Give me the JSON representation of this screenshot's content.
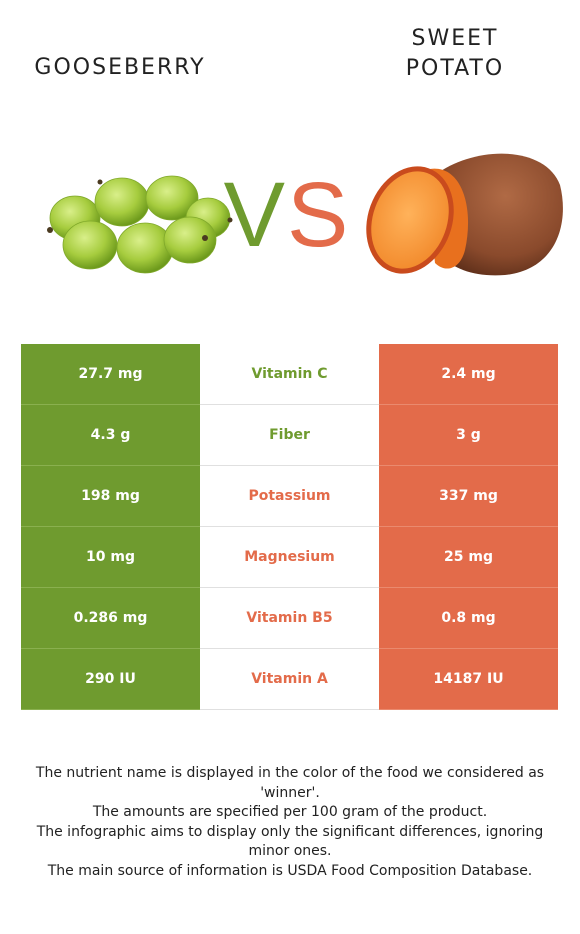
{
  "left_food": {
    "name": "GOOSEBERRY",
    "color": "#6f9b2f"
  },
  "right_food": {
    "name": "SWEET\nPOTATO",
    "color": "#e36b4a"
  },
  "vs": {
    "v": "V",
    "s": "S"
  },
  "rows": [
    {
      "nutrient": "Vitamin C",
      "left": "27.7 mg",
      "right": "2.4 mg",
      "winner": "left"
    },
    {
      "nutrient": "Fiber",
      "left": "4.3 g",
      "right": "3 g",
      "winner": "left"
    },
    {
      "nutrient": "Potassium",
      "left": "198 mg",
      "right": "337 mg",
      "winner": "right"
    },
    {
      "nutrient": "Magnesium",
      "left": "10 mg",
      "right": "25 mg",
      "winner": "right"
    },
    {
      "nutrient": "Vitamin B5",
      "left": "0.286 mg",
      "right": "0.8 mg",
      "winner": "right"
    },
    {
      "nutrient": "Vitamin A",
      "left": "290 IU",
      "right": "14187 IU",
      "winner": "right"
    }
  ],
  "footer": [
    "The nutrient name is displayed in the color of the food we considered as 'winner'.",
    "The amounts are specified per 100 gram of the product.",
    "The infographic aims to display only the significant differences, ignoring minor ones.",
    "The main source of information is USDA Food Composition Database."
  ]
}
